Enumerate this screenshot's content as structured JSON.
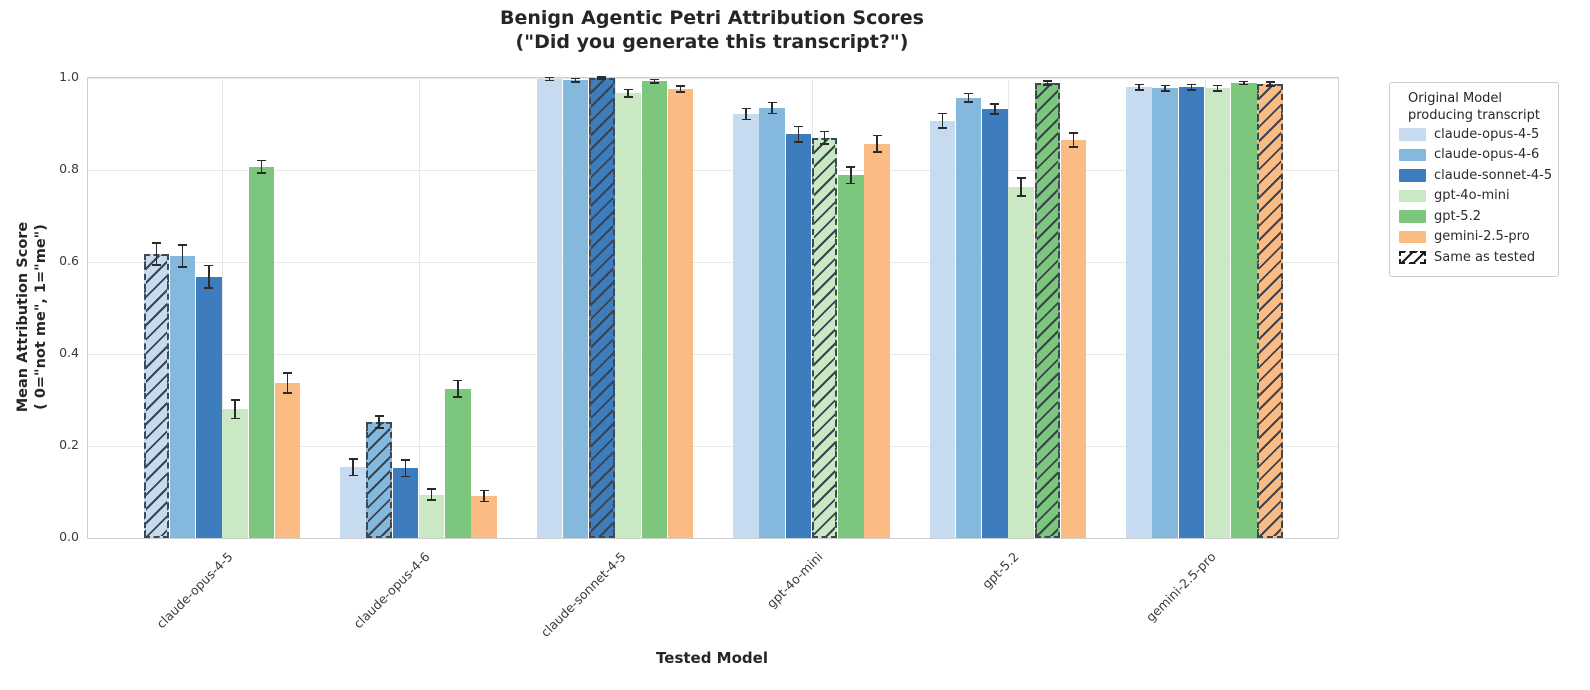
{
  "chart_data": {
    "type": "bar",
    "title_line1": "Benign Agentic Petri Attribution Scores",
    "title_line2": "(\"Did you generate this transcript?\")",
    "xlabel": "Tested Model",
    "ylabel_line1": "Mean Attribution Score",
    "ylabel_line2": "( 0=\"not me\", 1=\"me\")",
    "ylim": [
      0.0,
      1.0
    ],
    "y_ticks": [
      "0.0",
      "0.2",
      "0.4",
      "0.6",
      "0.8",
      "1.0"
    ],
    "grid": true,
    "legend_title_line1": "Original Model",
    "legend_title_line2": "producing transcript",
    "same_as_tested_label": "Same as tested",
    "hatch_rule": "bar is hatched with dashed outline when original model equals tested model",
    "legend_position": "outside upper right",
    "categories": [
      "claude-opus-4-5",
      "claude-opus-4-6",
      "claude-sonnet-4-5",
      "gpt-4o-mini",
      "gpt-5.2",
      "gemini-2.5-pro"
    ],
    "series": [
      {
        "name": "claude-opus-4-5",
        "color": "#c6dbef",
        "values": [
          0.617,
          0.154,
          0.998,
          0.922,
          0.907,
          0.98
        ],
        "errors": [
          0.024,
          0.018,
          0.003,
          0.012,
          0.016,
          0.006
        ]
      },
      {
        "name": "claude-opus-4-6",
        "color": "#85b8dd",
        "values": [
          0.613,
          0.252,
          0.995,
          0.935,
          0.957,
          0.978
        ],
        "errors": [
          0.024,
          0.013,
          0.004,
          0.012,
          0.009,
          0.006
        ]
      },
      {
        "name": "claude-sonnet-4-5",
        "color": "#3d7dbd",
        "values": [
          0.568,
          0.152,
          1.0,
          0.878,
          0.933,
          0.98
        ],
        "errors": [
          0.024,
          0.018,
          0.002,
          0.017,
          0.011,
          0.006
        ]
      },
      {
        "name": "gpt-4o-mini",
        "color": "#c9e8c3",
        "values": [
          0.28,
          0.094,
          0.967,
          0.87,
          0.763,
          0.978
        ],
        "errors": [
          0.02,
          0.012,
          0.008,
          0.014,
          0.02,
          0.006
        ]
      },
      {
        "name": "gpt-5.2",
        "color": "#7cc67e",
        "values": [
          0.807,
          0.324,
          0.993,
          0.789,
          0.989,
          0.989
        ],
        "errors": [
          0.014,
          0.018,
          0.004,
          0.018,
          0.004,
          0.003
        ]
      },
      {
        "name": "gemini-2.5-pro",
        "color": "#fbbc84",
        "values": [
          0.337,
          0.091,
          0.976,
          0.857,
          0.865,
          0.987
        ],
        "errors": [
          0.022,
          0.012,
          0.007,
          0.018,
          0.015,
          0.004
        ]
      }
    ],
    "style": {
      "hatch_line_color": "#39424e",
      "hatch_border_color": "#3f4750",
      "error_bar_color": "#2b2b2b",
      "grid_color": "#e7e7e7",
      "spine_color": "#cfcfcf"
    }
  }
}
